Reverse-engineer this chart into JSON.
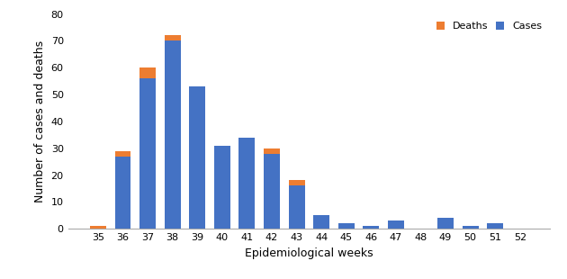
{
  "weeks": [
    35,
    36,
    37,
    38,
    39,
    40,
    41,
    42,
    43,
    44,
    45,
    46,
    47,
    48,
    49,
    50,
    51,
    52
  ],
  "cases": [
    0,
    27,
    56,
    70,
    53,
    31,
    34,
    28,
    16,
    5,
    2,
    1,
    3,
    0,
    4,
    1,
    2,
    0
  ],
  "deaths": [
    1,
    2,
    4,
    2,
    0,
    0,
    0,
    2,
    2,
    0,
    0,
    0,
    0,
    0,
    0,
    0,
    0,
    0
  ],
  "cases_color": "#4472c4",
  "deaths_color": "#ed7d31",
  "ylabel": "Number of cases and deaths",
  "xlabel": "Epidemiological weeks",
  "ylim": [
    0,
    80
  ],
  "yticks": [
    0,
    10,
    20,
    30,
    40,
    50,
    60,
    70,
    80
  ],
  "legend_labels": [
    "Deaths",
    "Cases"
  ],
  "legend_colors": [
    "#ed7d31",
    "#4472c4"
  ],
  "background_color": "#ffffff",
  "bar_width": 0.65
}
